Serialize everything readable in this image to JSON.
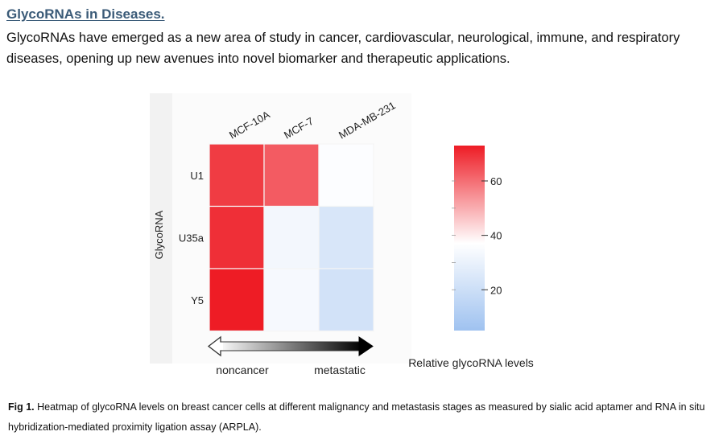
{
  "header": {
    "title": "GlycoRNAs in Diseases.",
    "intro": "GlycoRNAs have emerged as a new area of study in cancer, cardiovascular, neurological, immune, and respiratory diseases, opening up new avenues into novel biomarker and therapeutic applications."
  },
  "figure": {
    "y_axis_title": "GlycoRNA",
    "arrow_left_label": "noncancer",
    "arrow_right_label": "metastatic",
    "colorbar_title": "Relative glycoRNA levels",
    "colors": {
      "high": "#ee1c25",
      "mid": "#ffffff",
      "low": "#9fc2f0"
    }
  },
  "chart_data": {
    "type": "heatmap",
    "title": "",
    "xlabel": "",
    "ylabel": "GlycoRNA",
    "columns": [
      "MCF-10A",
      "MCF-7",
      "MDA-MB-231"
    ],
    "rows": [
      "U1",
      "U35a",
      "Y5"
    ],
    "values": [
      [
        68,
        63,
        36
      ],
      [
        70,
        33,
        24
      ],
      [
        73,
        34,
        22
      ]
    ],
    "colorbar": {
      "min": 5,
      "max": 73,
      "ticks": [
        20,
        40,
        60
      ],
      "label": "Relative glycoRNA levels"
    }
  },
  "caption": {
    "label": "Fig 1.",
    "text": " Heatmap of glycoRNA levels on breast cancer cells at different malignancy and metastasis stages as measured by sialic acid aptamer and RNA in situ hybridization-mediated proximity ligation assay (ARPLA)."
  }
}
